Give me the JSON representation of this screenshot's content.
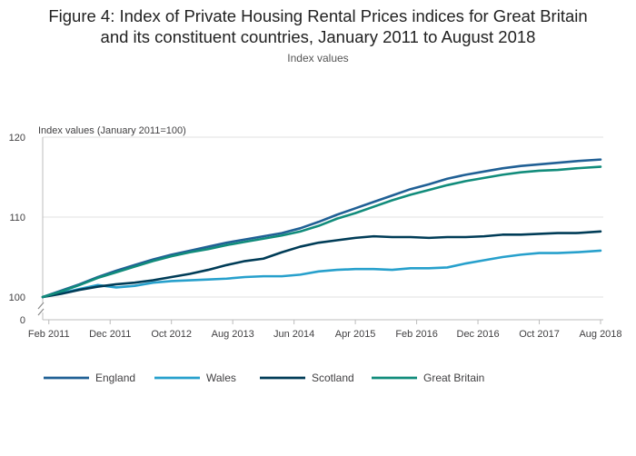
{
  "title_line1": "Figure 4: Index of Private Housing Rental Prices indices for Great Britain",
  "title_line2": "and its constituent countries, January 2011 to August 2018",
  "subtitle": "Index values",
  "chart_data": {
    "type": "line",
    "ylabel": "Index values (January 2011=100)",
    "ylim": [
      100,
      120
    ],
    "y_ticks": [
      "0",
      "100",
      "110",
      "120"
    ],
    "axis_break": true,
    "grid": true,
    "legend_position": "bottom",
    "x_tick_labels": [
      "Feb 2011",
      "Dec 2011",
      "Oct 2012",
      "Aug 2013",
      "Jun 2014",
      "Apr 2015",
      "Feb 2016",
      "Dec 2016",
      "Oct 2017",
      "Aug 2018"
    ],
    "x": [
      "Jan 2011",
      "Apr 2011",
      "Jul 2011",
      "Oct 2011",
      "Jan 2012",
      "Apr 2012",
      "Jul 2012",
      "Oct 2012",
      "Jan 2013",
      "Apr 2013",
      "Jul 2013",
      "Oct 2013",
      "Jan 2014",
      "Apr 2014",
      "Jul 2014",
      "Oct 2014",
      "Jan 2015",
      "Apr 2015",
      "Jul 2015",
      "Oct 2015",
      "Jan 2016",
      "Apr 2016",
      "Jul 2016",
      "Oct 2016",
      "Jan 2017",
      "Apr 2017",
      "Jul 2017",
      "Oct 2017",
      "Jan 2018",
      "Apr 2018",
      "Aug 2018"
    ],
    "series": [
      {
        "name": "England",
        "color": "#206095",
        "values": [
          100.0,
          100.8,
          101.6,
          102.5,
          103.3,
          104.0,
          104.7,
          105.3,
          105.8,
          106.3,
          106.8,
          107.2,
          107.6,
          108.0,
          108.6,
          109.4,
          110.3,
          111.1,
          111.9,
          112.7,
          113.5,
          114.1,
          114.8,
          115.3,
          115.7,
          116.1,
          116.4,
          116.6,
          116.8,
          117.0,
          117.2
        ]
      },
      {
        "name": "Wales",
        "color": "#27A0CC",
        "values": [
          100.0,
          100.5,
          101.0,
          101.5,
          101.2,
          101.4,
          101.8,
          102.0,
          102.1,
          102.2,
          102.3,
          102.5,
          102.6,
          102.6,
          102.8,
          103.2,
          103.4,
          103.5,
          103.5,
          103.4,
          103.6,
          103.6,
          103.7,
          104.2,
          104.6,
          105.0,
          105.3,
          105.5,
          105.5,
          105.6,
          105.8
        ]
      },
      {
        "name": "Scotland",
        "color": "#003C57",
        "values": [
          100.0,
          100.4,
          100.9,
          101.3,
          101.6,
          101.8,
          102.1,
          102.5,
          102.9,
          103.4,
          104.0,
          104.5,
          104.8,
          105.6,
          106.3,
          106.8,
          107.1,
          107.4,
          107.6,
          107.5,
          107.5,
          107.4,
          107.5,
          107.5,
          107.6,
          107.8,
          107.8,
          107.9,
          108.0,
          108.0,
          108.2
        ]
      },
      {
        "name": "Great Britain",
        "color": "#118C7B",
        "values": [
          100.0,
          100.7,
          101.5,
          102.4,
          103.1,
          103.8,
          104.5,
          105.1,
          105.6,
          106.0,
          106.5,
          106.9,
          107.3,
          107.7,
          108.2,
          108.9,
          109.8,
          110.5,
          111.3,
          112.1,
          112.8,
          113.4,
          114.0,
          114.5,
          114.9,
          115.3,
          115.6,
          115.8,
          115.9,
          116.1,
          116.3
        ]
      }
    ]
  }
}
